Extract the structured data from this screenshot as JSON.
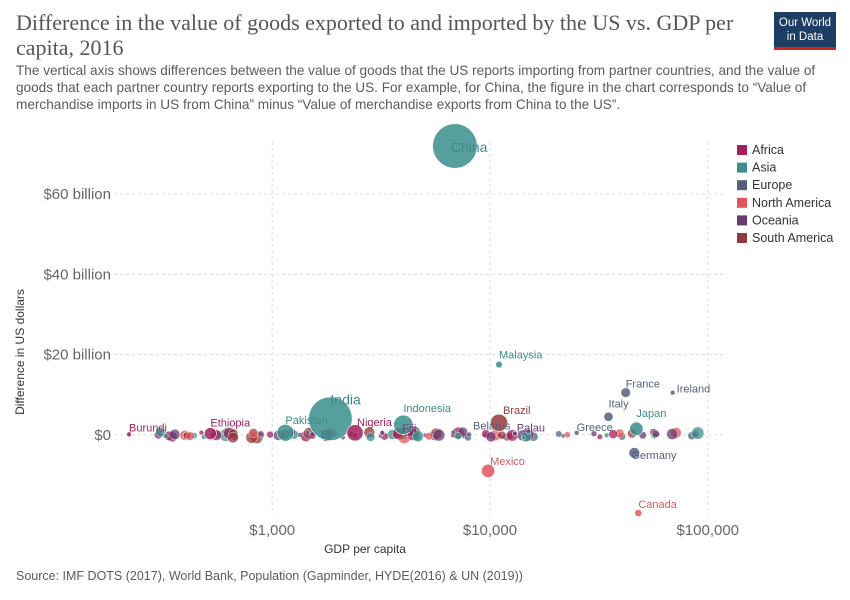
{
  "header": {
    "title": "Difference in the value of goods exported to and imported by the US vs. GDP per capita, 2016",
    "subtitle": "The vertical axis shows differences between the value of goods that the US reports importing from partner countries, and the value of goods that each partner country reports exporting to the US. For example, for China, the figure in the chart corresponds to “Value of merchandise imports in US from China” minus “Value of merchandise exports from China to the US”.",
    "logo_line1": "Our World",
    "logo_line2": "in Data"
  },
  "footer": {
    "source": "Source: IMF DOTS (2017), World Bank, Population (Gapminder, HYDE(2016) & UN (2019))"
  },
  "colors": {
    "Africa": "#a2205e",
    "Asia": "#3a8e8c",
    "Europe": "#54607c",
    "North America": "#e0565b",
    "Oceania": "#6b3a73",
    "South America": "#943a3b"
  },
  "chart_data": {
    "type": "scatter",
    "title": "Difference in the value of goods exported to and imported by the US vs. GDP per capita, 2016",
    "xlabel": "GDP per capita",
    "ylabel": "Difference in US dollars",
    "x_scale": "log",
    "xlim": [
      200,
      120000
    ],
    "ylim": [
      -20,
      73
    ],
    "x_ticks": [
      1000,
      10000,
      100000
    ],
    "x_tick_labels": [
      "$1,000",
      "$10,000",
      "$100,000"
    ],
    "y_ticks": [
      0,
      20,
      40,
      60
    ],
    "y_tick_labels": [
      "$0",
      "$20 billion",
      "$40 billion",
      "$60 billion"
    ],
    "y_unit": "billion US dollars",
    "grid": true,
    "legend_position": "right",
    "series": [
      {
        "name": "Africa"
      },
      {
        "name": "Asia"
      },
      {
        "name": "Europe"
      },
      {
        "name": "North America"
      },
      {
        "name": "Oceania"
      },
      {
        "name": "South America"
      }
    ],
    "points": [
      {
        "label": "China",
        "region": "Asia",
        "x": 6900,
        "y": 72,
        "size": 1380
      },
      {
        "label": "India",
        "region": "Asia",
        "x": 1850,
        "y": 4,
        "size": 1320
      },
      {
        "label": "Malaysia",
        "region": "Asia",
        "x": 11000,
        "y": 17.5,
        "size": 31
      },
      {
        "label": "Indonesia",
        "region": "Asia",
        "x": 4000,
        "y": 2.5,
        "size": 261
      },
      {
        "label": "Pakistan",
        "region": "Asia",
        "x": 1150,
        "y": 0.5,
        "size": 197
      },
      {
        "label": "Japan",
        "region": "Asia",
        "x": 47000,
        "y": 1.5,
        "size": 127
      },
      {
        "label": "France",
        "region": "Europe",
        "x": 42000,
        "y": 10.5,
        "size": 67
      },
      {
        "label": "Ireland",
        "region": "Europe",
        "x": 69000,
        "y": 10.5,
        "size": 5
      },
      {
        "label": "Italy",
        "region": "Europe",
        "x": 35000,
        "y": 4.5,
        "size": 61
      },
      {
        "label": "Greece",
        "region": "Europe",
        "x": 25000,
        "y": 0.5,
        "size": 11
      },
      {
        "label": "Germany",
        "region": "Europe",
        "x": 46000,
        "y": -4.5,
        "size": 82
      },
      {
        "label": "Belarus",
        "region": "Europe",
        "x": 15000,
        "y": 0.8,
        "size": 9
      },
      {
        "label": "Brazil",
        "region": "South America",
        "x": 11000,
        "y": 3,
        "size": 206
      },
      {
        "label": "Nigeria",
        "region": "Africa",
        "x": 2400,
        "y": 0.5,
        "size": 186
      },
      {
        "label": "Ethiopia",
        "region": "Africa",
        "x": 520,
        "y": 0.3,
        "size": 102
      },
      {
        "label": "Burundi",
        "region": "Africa",
        "x": 220,
        "y": 0.1,
        "size": 10
      },
      {
        "label": "Fiji",
        "region": "Oceania",
        "x": 3200,
        "y": 0.5,
        "size": 1
      },
      {
        "label": "Palau",
        "region": "Oceania",
        "x": 13000,
        "y": 0.3,
        "size": 1
      },
      {
        "label": "Mexico",
        "region": "North America",
        "x": 9800,
        "y": -9,
        "size": 124
      },
      {
        "label": "Canada",
        "region": "North America",
        "x": 48000,
        "y": -19.5,
        "size": 36
      }
    ]
  }
}
